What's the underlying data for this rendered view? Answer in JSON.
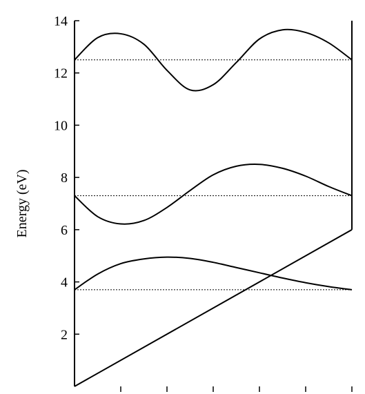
{
  "chart_data": {
    "type": "line",
    "title": "",
    "xlabel": "",
    "ylabel": "Energy (eV)",
    "ylim": [
      0,
      14
    ],
    "xlim": [
      0,
      6
    ],
    "yticks": [
      2,
      4,
      6,
      8,
      10,
      12,
      14
    ],
    "ytick_labels": [
      "2",
      "4",
      "6",
      "8",
      "10",
      "12",
      "14"
    ],
    "xticks": [
      1,
      2,
      3,
      4,
      5,
      6
    ],
    "grid": false,
    "legend": "none",
    "colors": {
      "line": "#000000",
      "background": "#ffffff"
    },
    "series": [
      {
        "x": [
          0,
          0.5,
          1,
          1.5,
          2,
          2.5,
          3,
          3.5,
          4,
          4.5,
          5,
          5.5,
          6
        ],
        "y": [
          3.7,
          4.3,
          4.7,
          4.88,
          4.95,
          4.9,
          4.75,
          4.55,
          4.35,
          4.15,
          3.97,
          3.82,
          3.7
        ]
      },
      {
        "x": [
          0,
          0.5,
          1,
          1.5,
          2,
          2.5,
          3,
          3.5,
          4,
          4.5,
          5,
          5.5,
          6
        ],
        "y": [
          7.3,
          6.5,
          6.22,
          6.35,
          6.85,
          7.5,
          8.1,
          8.43,
          8.5,
          8.35,
          8.05,
          7.65,
          7.3
        ]
      },
      {
        "x": [
          0,
          0.5,
          1,
          1.5,
          2,
          2.5,
          3,
          3.5,
          4,
          4.5,
          5,
          5.5,
          6
        ],
        "y": [
          12.5,
          13.35,
          13.5,
          13.1,
          12.1,
          11.35,
          11.55,
          12.4,
          13.3,
          13.65,
          13.55,
          13.15,
          12.5
        ]
      },
      {
        "x": [
          0,
          6
        ],
        "y": [
          0,
          6
        ]
      }
    ],
    "reference_lines": [
      {
        "orientation": "horizontal",
        "y": 3.7,
        "style": "dotted"
      },
      {
        "orientation": "horizontal",
        "y": 7.3,
        "style": "dotted"
      },
      {
        "orientation": "horizontal",
        "y": 12.5,
        "style": "dotted"
      }
    ],
    "vertical_lines": [
      {
        "x": 6,
        "y_from": 6,
        "y_to": 14,
        "style": "solid"
      }
    ]
  }
}
